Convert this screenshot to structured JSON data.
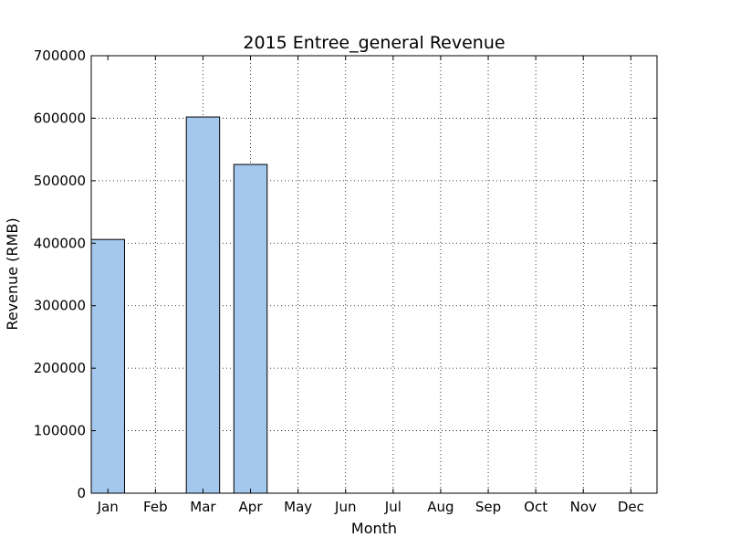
{
  "chart_data": {
    "type": "bar",
    "title": "2015 Entree_general Revenue",
    "xlabel": "Month",
    "ylabel": "Revenue (RMB)",
    "categories": [
      "Jan",
      "Feb",
      "Mar",
      "Apr",
      "May",
      "Jun",
      "Jul",
      "Aug",
      "Sep",
      "Oct",
      "Nov",
      "Dec"
    ],
    "values": [
      406000,
      0,
      602000,
      526000,
      0,
      0,
      0,
      0,
      0,
      0,
      0,
      0
    ],
    "ylim": [
      0,
      700000
    ],
    "yticks": [
      0,
      100000,
      200000,
      300000,
      400000,
      500000,
      600000,
      700000
    ],
    "ytick_labels": [
      "0",
      "100000",
      "200000",
      "300000",
      "400000",
      "500000",
      "600000",
      "700000"
    ],
    "grid": true,
    "bar_color": "#a4c7ed"
  }
}
